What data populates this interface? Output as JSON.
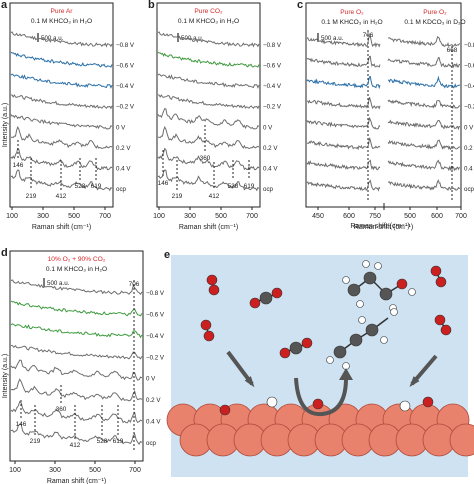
{
  "figure": {
    "colors": {
      "gray": "#6e6e6e",
      "blue": "#2a6fa8",
      "green": "#3f9a3f",
      "red": "#d62728",
      "scene_bg": "#cfe2f1",
      "surface": "#e8826d",
      "surface_edge": "#b04a3c",
      "carbon": "#555555",
      "oxygen": "#cc1f1f",
      "hydrogen": "#ffffff"
    },
    "axis_label_y": "Intensity (a.u.)",
    "axis_label_x": "Raman shift (cm⁻¹)"
  },
  "chart_data": [
    {
      "type": "line",
      "panel": "a",
      "title": "Pure Ar",
      "subtitle": "0.1 M KHCO₃ in H₂O",
      "scale_bar": "500 a.u.",
      "xlabel": "Raman shift (cm⁻¹)",
      "ylabel": "Intensity (a.u.)",
      "xlim": [
        100,
        750
      ],
      "xticks": [
        "100",
        "300",
        "500",
        "700"
      ],
      "series": [
        {
          "name": "−0.8 V",
          "color": "gray"
        },
        {
          "name": "−0.6 V",
          "color": "blue"
        },
        {
          "name": "−0.4 V",
          "color": "blue"
        },
        {
          "name": "−0.2 V",
          "color": "gray"
        },
        {
          "name": "0 V",
          "color": "gray"
        },
        {
          "name": "0.2 V",
          "color": "gray"
        },
        {
          "name": "0.4 V",
          "color": "gray"
        },
        {
          "name": "ocp",
          "color": "gray"
        }
      ],
      "peak_labels": [
        "146",
        "219",
        "412",
        "528",
        "619"
      ]
    },
    {
      "type": "line",
      "panel": "b",
      "title": "Pure CO₂",
      "subtitle": "0.1 M KHCO₃ in H₂O",
      "scale_bar": "500 a.u.",
      "xlabel": "Raman shift (cm⁻¹)",
      "xlim": [
        100,
        750
      ],
      "xticks": [
        "100",
        "300",
        "500",
        "700"
      ],
      "series": [
        {
          "name": "−0.8 V",
          "color": "gray"
        },
        {
          "name": "−0.6 V",
          "color": "green"
        },
        {
          "name": "−0.4 V",
          "color": "gray"
        },
        {
          "name": "−0.2 V",
          "color": "gray"
        },
        {
          "name": "0 V",
          "color": "gray"
        },
        {
          "name": "0.2 V",
          "color": "gray"
        },
        {
          "name": "0.4 V",
          "color": "gray"
        },
        {
          "name": "ocp",
          "color": "gray"
        }
      ],
      "peak_labels": [
        "146",
        "219",
        "360",
        "412",
        "528",
        "619"
      ]
    },
    {
      "type": "line",
      "panel": "c",
      "titles": [
        "Pure O₂",
        "Pure O₂"
      ],
      "subtitles": [
        "0.1 M KHCO₃ in H₂O",
        "0.1 M KDCO₃ in D₂O"
      ],
      "scale_bar": "500 a.u.",
      "xlabel": "Raman shift (cm⁻¹)",
      "xticks": [
        "450",
        "600",
        "750",
        "500",
        "600",
        "700"
      ],
      "series": [
        {
          "name": "−0.8 V",
          "color": "gray"
        },
        {
          "name": "−0.6 V",
          "color": "gray"
        },
        {
          "name": "−0.4 V",
          "color": "blue"
        },
        {
          "name": "−0.2 V",
          "color": "gray"
        },
        {
          "name": "0 V",
          "color": "gray"
        },
        {
          "name": "0.2 V",
          "color": "gray"
        },
        {
          "name": "0.4 V",
          "color": "gray"
        },
        {
          "name": "ocp",
          "color": "gray"
        }
      ],
      "peak_labels": [
        "706",
        "668"
      ]
    },
    {
      "type": "line",
      "panel": "d",
      "title": "10% O₂ + 90% CO₂",
      "subtitle": "0.1 M KHCO₃ in H₂O",
      "scale_bar": "500 a.u.",
      "xlabel": "Raman shift (cm⁻¹)",
      "ylabel": "Intensity (a.u.)",
      "xlim": [
        100,
        750
      ],
      "xticks": [
        "100",
        "300",
        "500",
        "700"
      ],
      "series": [
        {
          "name": "−0.8 V",
          "color": "gray"
        },
        {
          "name": "−0.6 V",
          "color": "green"
        },
        {
          "name": "−0.4 V",
          "color": "green"
        },
        {
          "name": "−0.2 V",
          "color": "gray"
        },
        {
          "name": "0 V",
          "color": "gray"
        },
        {
          "name": "0.2 V",
          "color": "gray"
        },
        {
          "name": "0.4 V",
          "color": "gray"
        },
        {
          "name": "ocp",
          "color": "gray"
        }
      ],
      "peak_labels": [
        "146",
        "219",
        "360",
        "412",
        "528",
        "619",
        "706"
      ]
    }
  ],
  "panel_letters": [
    "a",
    "b",
    "c",
    "d",
    "e"
  ]
}
